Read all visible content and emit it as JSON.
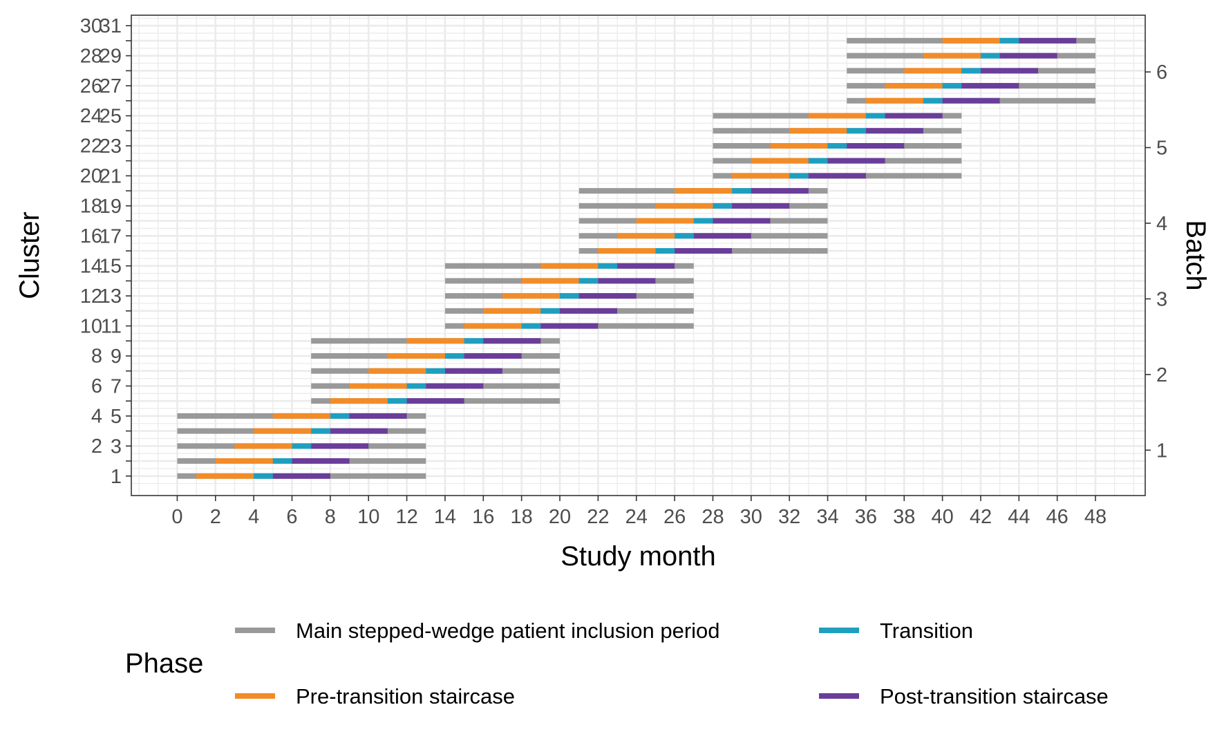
{
  "chart_data": {
    "type": "gantt",
    "xlabel": "Study month",
    "ylabel": "Cluster",
    "y2label": "Batch",
    "xlim": [
      -2.4,
      50.6
    ],
    "ylim": [
      -0.3,
      31.7
    ],
    "y2lim": [
      0.4,
      6.75
    ],
    "xticks": [
      0,
      2,
      4,
      6,
      8,
      10,
      12,
      14,
      16,
      18,
      20,
      22,
      24,
      26,
      28,
      30,
      32,
      34,
      36,
      38,
      40,
      42,
      44,
      46,
      48
    ],
    "yticks": [
      1,
      2,
      3,
      4,
      5,
      6,
      7,
      8,
      9,
      10,
      11,
      12,
      13,
      14,
      15,
      16,
      17,
      18,
      19,
      20,
      21,
      22,
      23,
      24,
      25,
      26,
      27,
      28,
      29,
      30,
      31
    ],
    "ytick_labels": [
      "1",
      "2",
      "3",
      "4",
      "5",
      "6",
      "7",
      "8",
      "9",
      "10",
      "11",
      "12",
      "13",
      "14",
      "15",
      "16",
      "17",
      "18",
      "19",
      "20",
      "21",
      "22",
      "23",
      "24",
      "25",
      "26",
      "27",
      "28",
      "29",
      "30",
      "31"
    ],
    "y2ticks": [
      1,
      2,
      3,
      4,
      5,
      6
    ],
    "grid": true,
    "legend": {
      "title": "Phase",
      "position": "bottom",
      "entries": [
        {
          "key": "main",
          "label": "Main stepped-wedge patient inclusion period"
        },
        {
          "key": "transition",
          "label": "Transition"
        },
        {
          "key": "pre",
          "label": "Pre-transition staircase"
        },
        {
          "key": "post",
          "label": "Post-transition staircase"
        }
      ]
    },
    "colors": {
      "main": "#999999",
      "pre": "#F28C28",
      "transition": "#1F9FBF",
      "post": "#6A3D9A",
      "grid": "#ebebeb",
      "axis": "#333333"
    },
    "batches": [
      {
        "batch": 1,
        "start": 0,
        "end": 13
      },
      {
        "batch": 2,
        "start": 7,
        "end": 20
      },
      {
        "batch": 3,
        "start": 14,
        "end": 27
      },
      {
        "batch": 4,
        "start": 21,
        "end": 34
      },
      {
        "batch": 5,
        "start": 28,
        "end": 41
      },
      {
        "batch": 6,
        "start": 35,
        "end": 48
      }
    ],
    "clusters": [
      {
        "cluster": 1,
        "batch": 1,
        "pre_start": 1
      },
      {
        "cluster": 2,
        "batch": 1,
        "pre_start": 2
      },
      {
        "cluster": 3,
        "batch": 1,
        "pre_start": 3
      },
      {
        "cluster": 4,
        "batch": 1,
        "pre_start": 4
      },
      {
        "cluster": 5,
        "batch": 1,
        "pre_start": 5
      },
      {
        "cluster": 6,
        "batch": 2,
        "pre_start": 8
      },
      {
        "cluster": 7,
        "batch": 2,
        "pre_start": 9
      },
      {
        "cluster": 8,
        "batch": 2,
        "pre_start": 10
      },
      {
        "cluster": 9,
        "batch": 2,
        "pre_start": 11
      },
      {
        "cluster": 10,
        "batch": 2,
        "pre_start": 12
      },
      {
        "cluster": 11,
        "batch": 3,
        "pre_start": 15
      },
      {
        "cluster": 12,
        "batch": 3,
        "pre_start": 16
      },
      {
        "cluster": 13,
        "batch": 3,
        "pre_start": 17
      },
      {
        "cluster": 14,
        "batch": 3,
        "pre_start": 18
      },
      {
        "cluster": 15,
        "batch": 3,
        "pre_start": 19
      },
      {
        "cluster": 16,
        "batch": 4,
        "pre_start": 22
      },
      {
        "cluster": 17,
        "batch": 4,
        "pre_start": 23
      },
      {
        "cluster": 18,
        "batch": 4,
        "pre_start": 24
      },
      {
        "cluster": 19,
        "batch": 4,
        "pre_start": 25
      },
      {
        "cluster": 20,
        "batch": 4,
        "pre_start": 26
      },
      {
        "cluster": 21,
        "batch": 5,
        "pre_start": 29
      },
      {
        "cluster": 22,
        "batch": 5,
        "pre_start": 30
      },
      {
        "cluster": 23,
        "batch": 5,
        "pre_start": 31
      },
      {
        "cluster": 24,
        "batch": 5,
        "pre_start": 32
      },
      {
        "cluster": 25,
        "batch": 5,
        "pre_start": 33
      },
      {
        "cluster": 26,
        "batch": 6,
        "pre_start": 36
      },
      {
        "cluster": 27,
        "batch": 6,
        "pre_start": 37
      },
      {
        "cluster": 28,
        "batch": 6,
        "pre_start": 38
      },
      {
        "cluster": 29,
        "batch": 6,
        "pre_start": 39
      },
      {
        "cluster": 30,
        "batch": 6,
        "pre_start": 40
      }
    ],
    "phase_durations": {
      "pre": 3,
      "transition": 1,
      "post": 3
    }
  }
}
